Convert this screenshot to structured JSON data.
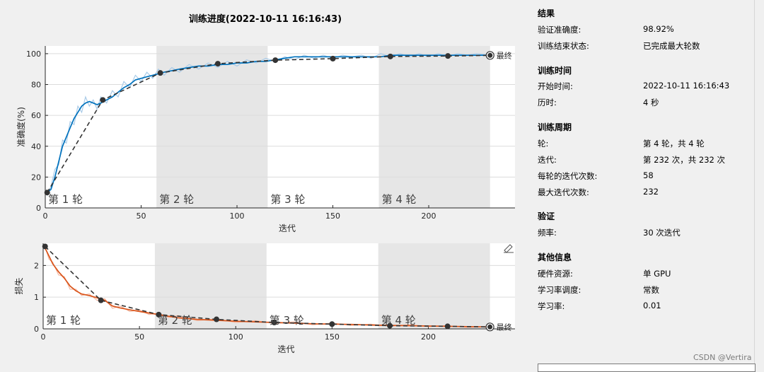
{
  "title": "训练进度(2022-10-11 16:16:43)",
  "chart_data": [
    {
      "type": "line",
      "name": "accuracy",
      "xlabel": "迭代",
      "ylabel": "准确度(%)",
      "xlim": [
        0,
        245
      ],
      "ylim": [
        0,
        105
      ],
      "xticks": [
        0,
        50,
        100,
        150,
        200
      ],
      "yticks": [
        0,
        20,
        40,
        60,
        80,
        100
      ],
      "grid": true,
      "epoch_labels": [
        "第 1 轮",
        "第 2 轮",
        "第 3 轮",
        "第 4 轮"
      ],
      "epoch_bounds": [
        [
          0,
          58
        ],
        [
          58,
          116
        ],
        [
          116,
          174
        ],
        [
          174,
          232
        ]
      ],
      "final_label": "最终",
      "series": [
        {
          "role": "training-smoothed",
          "color": "#0072bd",
          "x": [
            1,
            3,
            5,
            7,
            9,
            11,
            13,
            15,
            17,
            19,
            21,
            23,
            25,
            27,
            29,
            32,
            35,
            38,
            41,
            44,
            47,
            50,
            53,
            56,
            59,
            62,
            66,
            70,
            75,
            80,
            85,
            90,
            95,
            100,
            105,
            110,
            115,
            120,
            125,
            130,
            135,
            140,
            145,
            150,
            155,
            160,
            165,
            170,
            175,
            180,
            185,
            190,
            195,
            200,
            205,
            210,
            215,
            220,
            225,
            232
          ],
          "y": [
            10,
            12,
            20,
            30,
            40,
            46,
            52,
            58,
            62,
            66,
            68,
            69,
            68,
            67,
            68,
            70,
            72,
            75,
            78,
            80,
            83,
            84,
            85,
            86,
            87,
            88,
            89,
            90,
            91,
            92,
            92,
            93,
            93,
            94,
            94,
            95,
            95,
            96,
            97,
            98,
            98,
            98,
            98,
            98,
            98,
            98,
            98,
            98,
            98,
            99,
            99,
            99,
            99,
            99,
            99,
            99,
            99,
            99,
            99,
            99
          ]
        },
        {
          "role": "training-raw",
          "color": "#a9cbe8",
          "x": [
            1,
            3,
            5,
            7,
            9,
            11,
            13,
            15,
            17,
            19,
            21,
            23,
            25,
            27,
            29,
            32,
            35,
            38,
            41,
            44,
            47,
            50,
            53,
            56,
            59,
            62,
            66,
            70,
            75,
            80,
            85,
            90,
            95,
            100,
            105,
            110,
            115,
            120,
            125,
            130,
            135,
            140,
            145,
            150,
            155,
            160,
            165,
            170,
            175,
            180,
            185,
            190,
            195,
            200,
            205,
            210,
            215,
            220,
            225,
            232
          ],
          "y": [
            8,
            14,
            25,
            28,
            44,
            42,
            56,
            54,
            66,
            62,
            72,
            66,
            70,
            64,
            72,
            68,
            76,
            72,
            82,
            78,
            86,
            82,
            88,
            84,
            90,
            86,
            91,
            88,
            93,
            90,
            94,
            91,
            95,
            92,
            96,
            94,
            97,
            95,
            98,
            96,
            99,
            97,
            99,
            97,
            99,
            98,
            99,
            97,
            100,
            98,
            100,
            98,
            100,
            98,
            100,
            98,
            100,
            99,
            100,
            99
          ]
        },
        {
          "role": "validation",
          "color": "#333333",
          "dashed": true,
          "x": [
            1,
            30,
            60,
            90,
            120,
            150,
            180,
            210,
            232
          ],
          "y": [
            10,
            70,
            87.5,
            93.5,
            95.8,
            96.8,
            98.2,
            98.5,
            98.9
          ]
        }
      ]
    },
    {
      "type": "line",
      "name": "loss",
      "xlabel": "迭代",
      "ylabel": "损失",
      "xlim": [
        0,
        245
      ],
      "ylim": [
        0,
        2.7
      ],
      "xticks": [
        0,
        50,
        100,
        150,
        200
      ],
      "yticks": [
        0,
        1,
        2
      ],
      "grid": true,
      "epoch_labels": [
        "第 1 轮",
        "第 2 轮",
        "第 3 轮",
        "第 4 轮"
      ],
      "epoch_bounds": [
        [
          0,
          58
        ],
        [
          58,
          116
        ],
        [
          116,
          174
        ],
        [
          174,
          232
        ]
      ],
      "final_label": "最终",
      "series": [
        {
          "role": "training-smoothed",
          "color": "#d95319",
          "x": [
            1,
            3,
            5,
            8,
            11,
            14,
            17,
            20,
            24,
            28,
            32,
            36,
            40,
            45,
            50,
            55,
            60,
            65,
            70,
            80,
            90,
            100,
            110,
            120,
            130,
            140,
            150,
            160,
            170,
            180,
            190,
            200,
            210,
            220,
            232
          ],
          "y": [
            2.55,
            2.3,
            2.05,
            1.8,
            1.6,
            1.35,
            1.2,
            1.1,
            1.05,
            0.98,
            0.9,
            0.72,
            0.66,
            0.6,
            0.55,
            0.5,
            0.45,
            0.4,
            0.35,
            0.3,
            0.27,
            0.24,
            0.22,
            0.2,
            0.18,
            0.16,
            0.15,
            0.14,
            0.12,
            0.11,
            0.1,
            0.09,
            0.08,
            0.07,
            0.06
          ]
        },
        {
          "role": "training-raw",
          "color": "#f3b8a1",
          "x": [
            1,
            3,
            5,
            8,
            11,
            14,
            17,
            20,
            24,
            28,
            32,
            36,
            40,
            45,
            50,
            55,
            60,
            65,
            70,
            80,
            90,
            100,
            110,
            120,
            130,
            140,
            150,
            160,
            170,
            180,
            190,
            200,
            210,
            220,
            232
          ],
          "y": [
            2.6,
            2.2,
            2.1,
            1.7,
            1.65,
            1.25,
            1.25,
            1.05,
            1.1,
            0.9,
            0.95,
            0.65,
            0.72,
            0.55,
            0.6,
            0.45,
            0.5,
            0.36,
            0.42,
            0.26,
            0.32,
            0.2,
            0.26,
            0.17,
            0.22,
            0.13,
            0.18,
            0.11,
            0.15,
            0.09,
            0.13,
            0.07,
            0.1,
            0.05,
            0.07
          ]
        },
        {
          "role": "validation",
          "color": "#333333",
          "dashed": true,
          "x": [
            1,
            30,
            60,
            90,
            120,
            150,
            180,
            210,
            232
          ],
          "y": [
            2.6,
            0.9,
            0.45,
            0.3,
            0.2,
            0.15,
            0.1,
            0.08,
            0.06
          ]
        }
      ]
    }
  ],
  "panel": {
    "results": {
      "title": "结果",
      "val_acc_label": "验证准确度:",
      "val_acc_value": "98.92%",
      "status_label": "训练结束状态:",
      "status_value": "已完成最大轮数"
    },
    "time": {
      "title": "训练时间",
      "start_label": "开始时间:",
      "start_value": "2022-10-11 16:16:43",
      "elapsed_label": "历时:",
      "elapsed_value": "4 秒"
    },
    "cycle": {
      "title": "训练周期",
      "epoch_label": "轮:",
      "epoch_value": "第 4 轮，共 4 轮",
      "iter_label": "迭代:",
      "iter_value": "第 232 次，共 232 次",
      "per_epoch_label": "每轮的迭代次数:",
      "per_epoch_value": "58",
      "max_iter_label": "最大迭代次数:",
      "max_iter_value": "232"
    },
    "validation": {
      "title": "验证",
      "freq_label": "频率:",
      "freq_value": "30 次迭代"
    },
    "other": {
      "title": "其他信息",
      "hw_label": "硬件资源:",
      "hw_value": "单 GPU",
      "lr_sched_label": "学习率调度:",
      "lr_sched_value": "常数",
      "lr_label": "学习率:",
      "lr_value": "0.01"
    }
  },
  "watermark": "CSDN @Vertira"
}
